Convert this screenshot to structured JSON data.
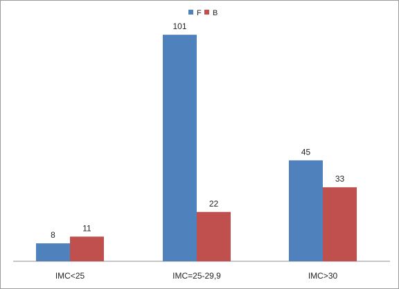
{
  "chart_data": {
    "type": "bar",
    "title": "",
    "xlabel": "",
    "ylabel": "",
    "categories": [
      "IMC<25",
      "IMC=25-29,9",
      "IMC>30"
    ],
    "series": [
      {
        "name": "F",
        "values": [
          8,
          101,
          45
        ],
        "color": "#4f81bd"
      },
      {
        "name": "B",
        "values": [
          11,
          22,
          33
        ],
        "color": "#c0504d"
      }
    ],
    "ylim": [
      0,
      110
    ],
    "grid": false,
    "data_labels": true,
    "legend_position": "top-center"
  }
}
